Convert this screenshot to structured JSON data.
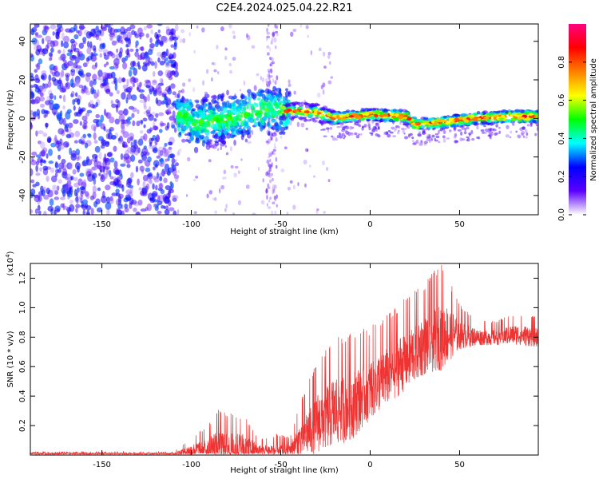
{
  "title": "C2E4.2024.025.04.22.R21",
  "chart_data": [
    {
      "type": "heatmap",
      "title": "C2E4.2024.025.04.22.R21",
      "xlabel": "Height of straight line (km)",
      "ylabel": "Frequency (Hz)",
      "xlim": [
        -190,
        94
      ],
      "ylim": [
        -50,
        49
      ],
      "xticks": [
        -150,
        -100,
        -50,
        0,
        50
      ],
      "yticks": [
        -40,
        -20,
        0,
        20,
        40
      ],
      "xtick_labels": [
        "-150",
        "-100",
        "-50",
        "0",
        "50"
      ],
      "ytick_labels": [
        "-40",
        "-20",
        "0",
        "20",
        "40"
      ],
      "description_regions": [
        {
          "x_range": [
            -190,
            -108
          ],
          "freq_range": [
            -50,
            49
          ],
          "level": 0.2,
          "kind": "broadband noise"
        },
        {
          "x_range": [
            -108,
            -45
          ],
          "freq_range": [
            -20,
            15
          ],
          "level": 0.3,
          "kind": "scattered energy"
        },
        {
          "x_range": [
            -45,
            -20
          ],
          "freq_range": [
            -2,
            8
          ],
          "level": 0.6,
          "kind": "band"
        },
        {
          "x_range": [
            -20,
            94
          ],
          "freq_range": [
            -3,
            5
          ],
          "level": 0.85,
          "kind": "narrow band"
        }
      ],
      "band_center": [
        {
          "x": -100,
          "freq": -3
        },
        {
          "x": -80,
          "freq": 0
        },
        {
          "x": -60,
          "freq": 4
        },
        {
          "x": -45,
          "freq": 4
        },
        {
          "x": -30,
          "freq": 3
        },
        {
          "x": -20,
          "freq": 0
        },
        {
          "x": 0,
          "freq": 2
        },
        {
          "x": 20,
          "freq": 1
        },
        {
          "x": 25,
          "freq": -3
        },
        {
          "x": 40,
          "freq": -2
        },
        {
          "x": 60,
          "freq": 0
        },
        {
          "x": 80,
          "freq": 1
        },
        {
          "x": 94,
          "freq": 1
        }
      ],
      "colorbar": {
        "label": "Normalized spectral amplitude",
        "range": [
          0,
          1
        ],
        "ticks": [
          0.0,
          0.2,
          0.4,
          0.6,
          0.8
        ],
        "tick_labels": [
          "0.0",
          "0.2",
          "0.4",
          "0.6",
          "0.8"
        ],
        "colors": [
          "#ffffff",
          "#5a00ff",
          "#0000ff",
          "#00ffff",
          "#00ff00",
          "#ffff00",
          "#ff8000",
          "#ff0000",
          "#ff0080"
        ]
      }
    },
    {
      "type": "line",
      "xlabel": "Height of straight line (km)",
      "ylabel": "SNR (10 * v/v)",
      "y_scale_label": "(x10",
      "y_scale_exp": "4",
      "y_scale_close": ")",
      "xlim": [
        -190,
        94
      ],
      "ylim": [
        0,
        1.3
      ],
      "xticks": [
        -150,
        -100,
        -50,
        0,
        50
      ],
      "yticks": [
        0.2,
        0.4,
        0.6,
        0.8,
        1.0,
        1.2
      ],
      "xtick_labels": [
        "-150",
        "-100",
        "-50",
        "0",
        "50"
      ],
      "ytick_labels": [
        "0.2",
        "0.4",
        "0.6",
        "0.8",
        "1.0",
        "1.2"
      ],
      "color": "#ee3333",
      "envelope": [
        {
          "x": -190,
          "base": 0.01,
          "amp": 0.01
        },
        {
          "x": -110,
          "base": 0.01,
          "amp": 0.01
        },
        {
          "x": -100,
          "base": 0.03,
          "amp": 0.06
        },
        {
          "x": -90,
          "base": 0.05,
          "amp": 0.12
        },
        {
          "x": -85,
          "base": 0.06,
          "amp": 0.18
        },
        {
          "x": -70,
          "base": 0.05,
          "amp": 0.15
        },
        {
          "x": -62,
          "base": 0.03,
          "amp": 0.06
        },
        {
          "x": -52,
          "base": 0.03,
          "amp": 0.08
        },
        {
          "x": -45,
          "base": 0.04,
          "amp": 0.06
        },
        {
          "x": -38,
          "base": 0.12,
          "amp": 0.2
        },
        {
          "x": -30,
          "base": 0.22,
          "amp": 0.3
        },
        {
          "x": -20,
          "base": 0.3,
          "amp": 0.35
        },
        {
          "x": -10,
          "base": 0.35,
          "amp": 0.35
        },
        {
          "x": 0,
          "base": 0.45,
          "amp": 0.3
        },
        {
          "x": 10,
          "base": 0.55,
          "amp": 0.3
        },
        {
          "x": 20,
          "base": 0.65,
          "amp": 0.3
        },
        {
          "x": 30,
          "base": 0.75,
          "amp": 0.3
        },
        {
          "x": 40,
          "base": 0.82,
          "amp": 0.35
        },
        {
          "x": 50,
          "base": 0.82,
          "amp": 0.15
        },
        {
          "x": 60,
          "base": 0.8,
          "amp": 0.08
        },
        {
          "x": 70,
          "base": 0.8,
          "amp": 0.08
        },
        {
          "x": 80,
          "base": 0.82,
          "amp": 0.1
        },
        {
          "x": 94,
          "base": 0.8,
          "amp": 0.1
        }
      ]
    }
  ]
}
